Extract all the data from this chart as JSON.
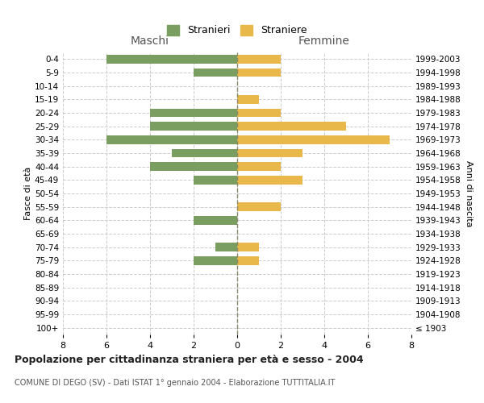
{
  "age_groups": [
    "100+",
    "95-99",
    "90-94",
    "85-89",
    "80-84",
    "75-79",
    "70-74",
    "65-69",
    "60-64",
    "55-59",
    "50-54",
    "45-49",
    "40-44",
    "35-39",
    "30-34",
    "25-29",
    "20-24",
    "15-19",
    "10-14",
    "5-9",
    "0-4"
  ],
  "birth_years": [
    "≤ 1903",
    "1904-1908",
    "1909-1913",
    "1914-1918",
    "1919-1923",
    "1924-1928",
    "1929-1933",
    "1934-1938",
    "1939-1943",
    "1944-1948",
    "1949-1953",
    "1954-1958",
    "1959-1963",
    "1964-1968",
    "1969-1973",
    "1974-1978",
    "1979-1983",
    "1984-1988",
    "1989-1993",
    "1994-1998",
    "1999-2003"
  ],
  "males": [
    0,
    0,
    0,
    0,
    0,
    2,
    1,
    0,
    2,
    0,
    0,
    2,
    4,
    3,
    6,
    4,
    4,
    0,
    0,
    2,
    6
  ],
  "females": [
    0,
    0,
    0,
    0,
    0,
    1,
    1,
    0,
    0,
    2,
    0,
    3,
    2,
    3,
    7,
    5,
    2,
    1,
    0,
    2,
    2
  ],
  "male_color": "#7a9e5f",
  "female_color": "#e8b84b",
  "grid_color": "#cccccc",
  "center_line_color": "#888866",
  "title": "Popolazione per cittadinanza straniera per età e sesso - 2004",
  "subtitle": "COMUNE DI DEGO (SV) - Dati ISTAT 1° gennaio 2004 - Elaborazione TUTTITALIA.IT",
  "xlabel_left": "Maschi",
  "xlabel_right": "Femmine",
  "ylabel_left": "Fasce di età",
  "ylabel_right": "Anni di nascita",
  "legend_male": "Stranieri",
  "legend_female": "Straniere",
  "xlim": 8,
  "xticks": [
    -8,
    -6,
    -4,
    -2,
    0,
    2,
    4,
    6,
    8
  ],
  "xtick_labels": [
    "8",
    "6",
    "4",
    "2",
    "0",
    "2",
    "4",
    "6",
    "8"
  ],
  "background_color": "#ffffff",
  "bar_height": 0.65
}
